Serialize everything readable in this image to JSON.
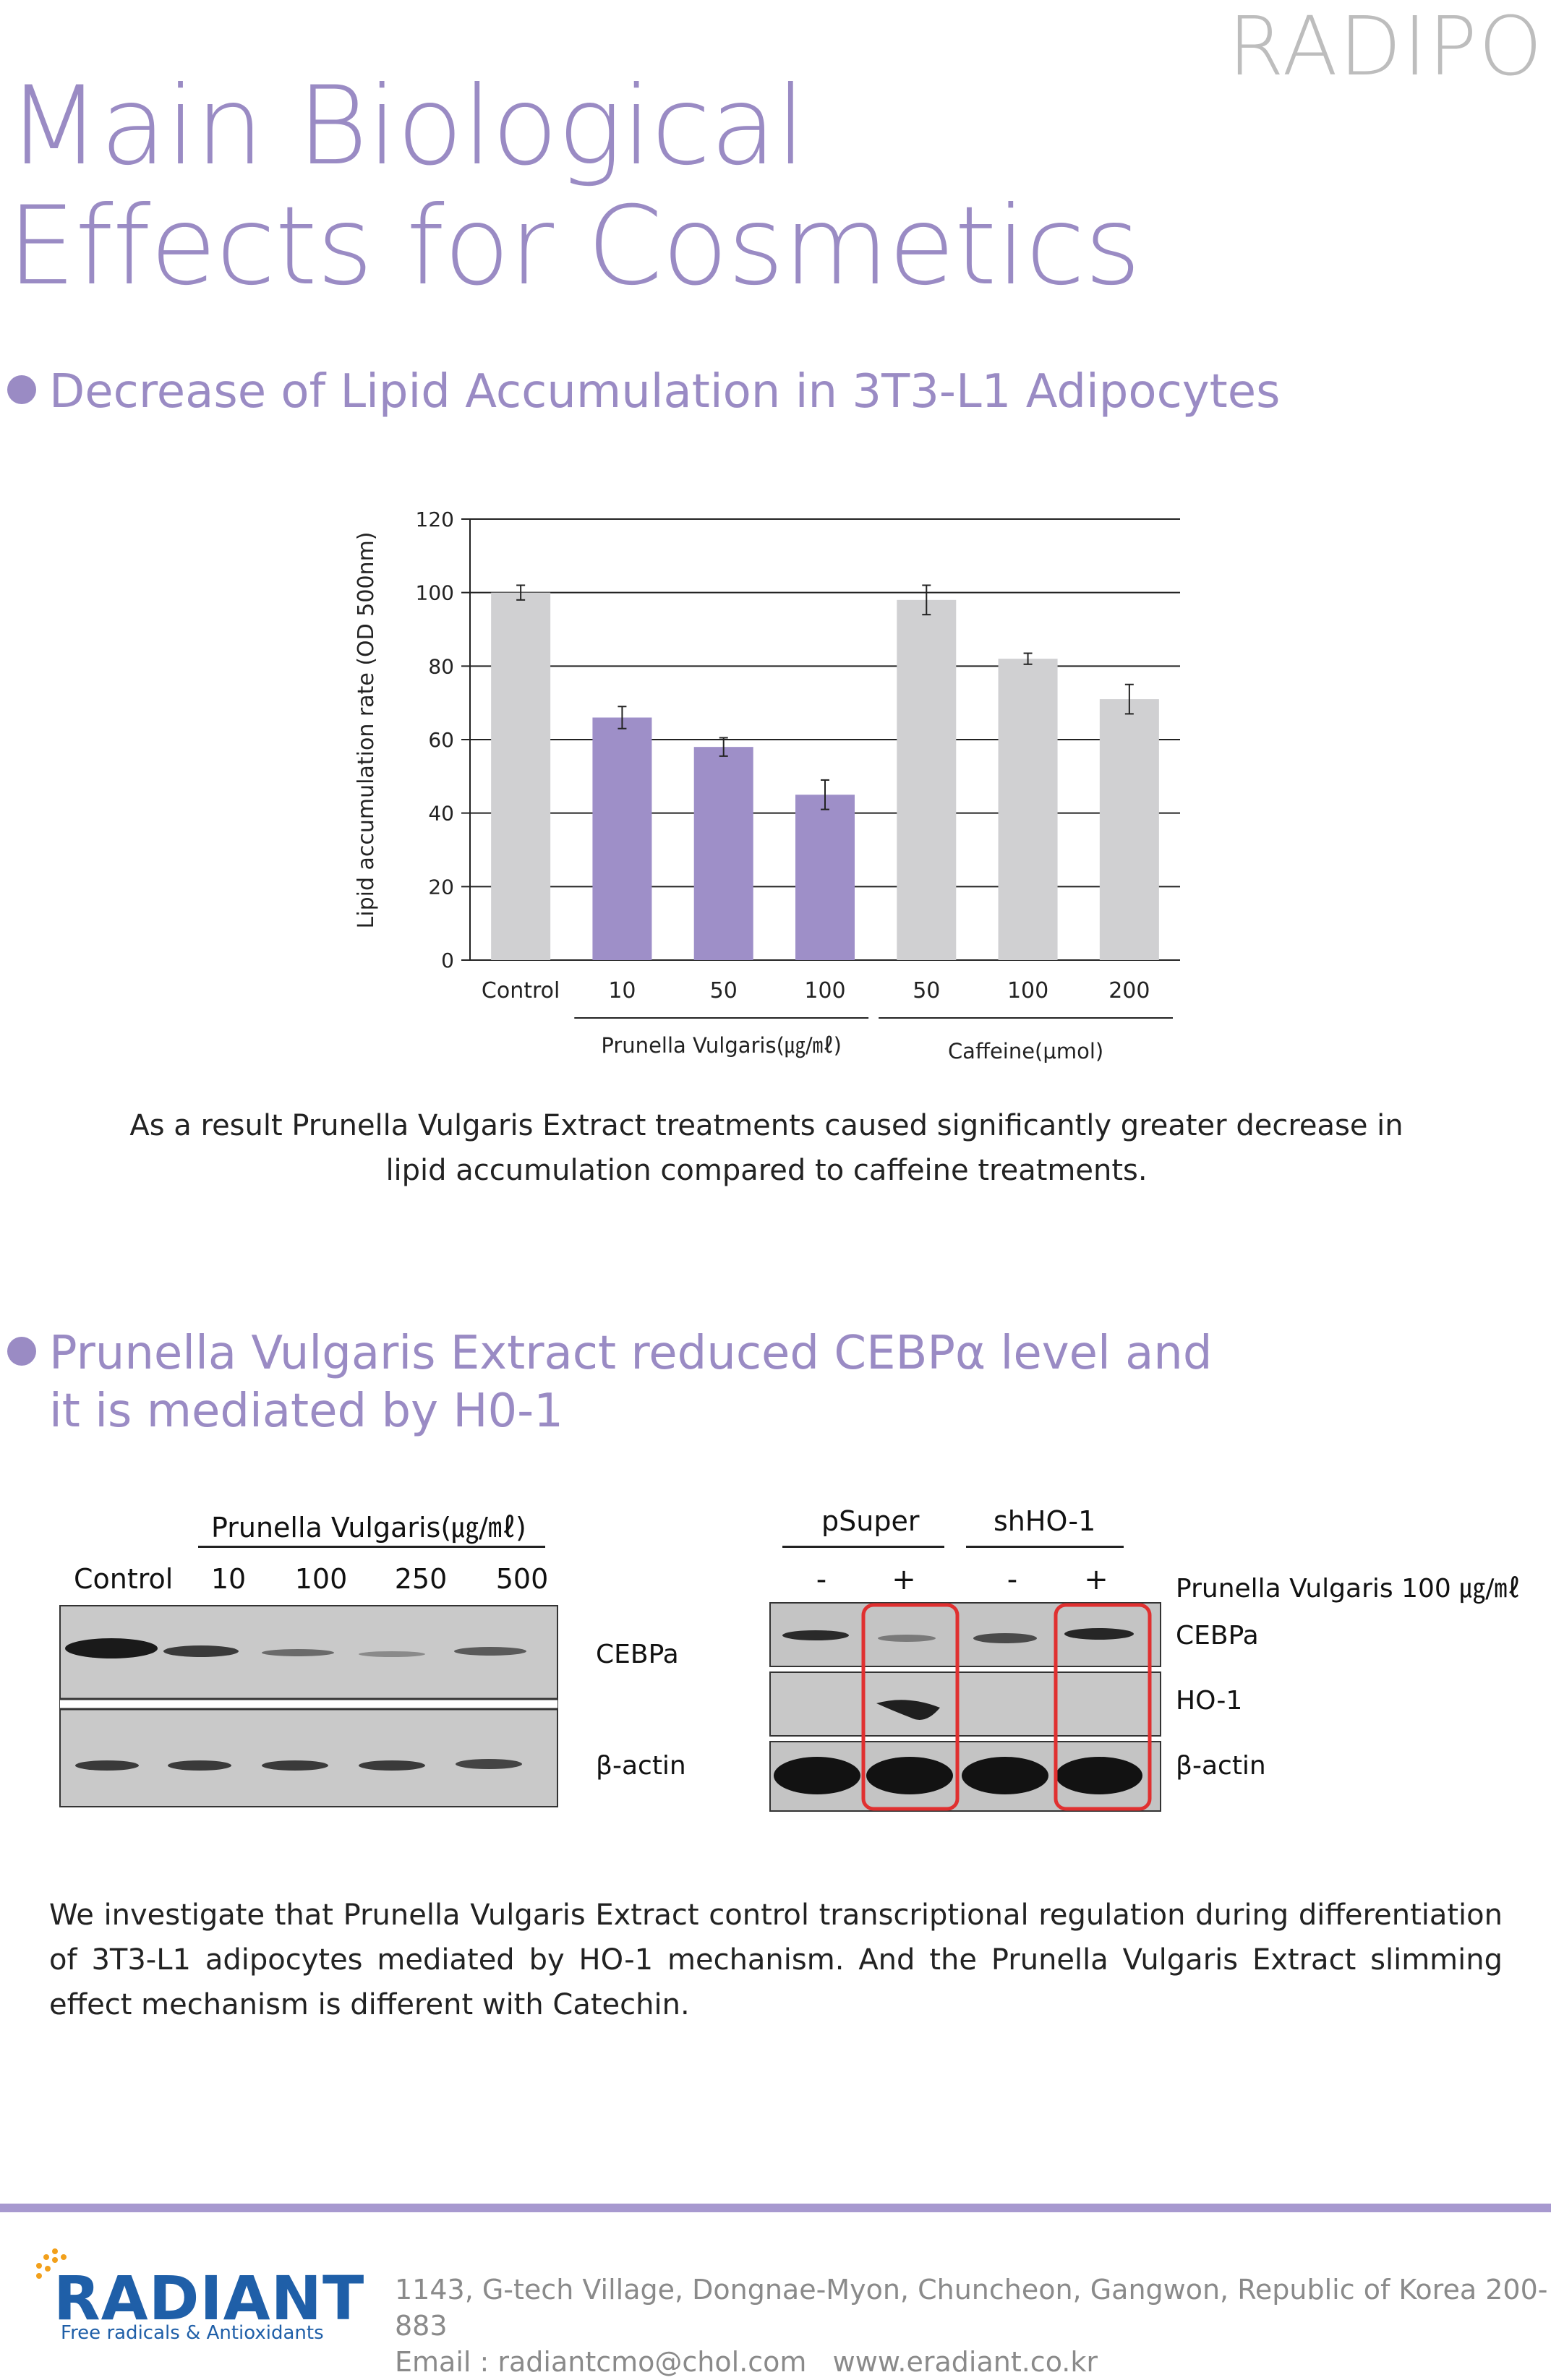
{
  "brand": "RADIPO",
  "title": {
    "line1": "Main Biological",
    "line2": "Effects for Cosmetics"
  },
  "section1": {
    "heading": "Decrease of Lipid Accumulation in 3T3-L1 Adipocytes"
  },
  "chart_data": {
    "type": "bar",
    "ylabel": "Lipid accumulation rate (OD 500nm)",
    "ylim": [
      0,
      120
    ],
    "yticks": [
      0,
      20,
      40,
      60,
      80,
      100,
      120
    ],
    "grid": true,
    "categories": [
      "Control",
      "10",
      "50",
      "100",
      "50",
      "100",
      "200"
    ],
    "values": [
      100,
      66,
      58,
      45,
      98,
      82,
      71
    ],
    "errors": [
      2,
      3,
      2.5,
      4,
      4,
      1.5,
      4
    ],
    "groups": [
      {
        "label": "Prunella Vulgaris(㎍/㎖)",
        "members": [
          1,
          2,
          3
        ]
      },
      {
        "label": "Caffeine(μmol)",
        "members": [
          4,
          5,
          6
        ]
      }
    ],
    "colors": {
      "control": "#d0d0d2",
      "prunella": "#9e8fc8",
      "caffeine": "#d0d0d2"
    }
  },
  "caption1": "As a result Prunella Vulgaris Extract treatments caused significantly greater decrease in lipid accumulation compared to caffeine treatments.",
  "section2": {
    "line1": "Prunella Vulgaris Extract reduced CEBPα level and",
    "line2": "it is mediated by H0-1"
  },
  "blot1": {
    "header": "Prunella Vulgaris(㎍/㎖)",
    "lanes": [
      "Control",
      "10",
      "100",
      "250",
      "500"
    ],
    "labels": {
      "top": "CEBPa",
      "bottom": "β-actin"
    }
  },
  "blot2": {
    "groups": [
      "pSuper",
      "shHO-1"
    ],
    "signs": [
      "-",
      "+",
      "-",
      "+"
    ],
    "treatment": "Prunella Vulgaris 100 ㎍/㎖",
    "labels": {
      "r1": "CEBPa",
      "r2": "HO-1",
      "r3": "β-actin"
    }
  },
  "paragraph": "We investigate that Prunella Vulgaris Extract control transcriptional regulation during differentiation of 3T3-L1 adipocytes mediated by HO-1 mechanism. And the Prunella Vulgaris Extract slimming effect mechanism is different with Catechin.",
  "footer": {
    "logo_word": "RADIANT",
    "logo_tag": "Free radicals & Antioxidants",
    "address": "1143, G-tech Village, Dongnae-Myon, Chuncheon, Gangwon, Republic of Korea 200-883",
    "contact": "Email : radiantcmo@chol.com   www.eradiant.co.kr"
  }
}
